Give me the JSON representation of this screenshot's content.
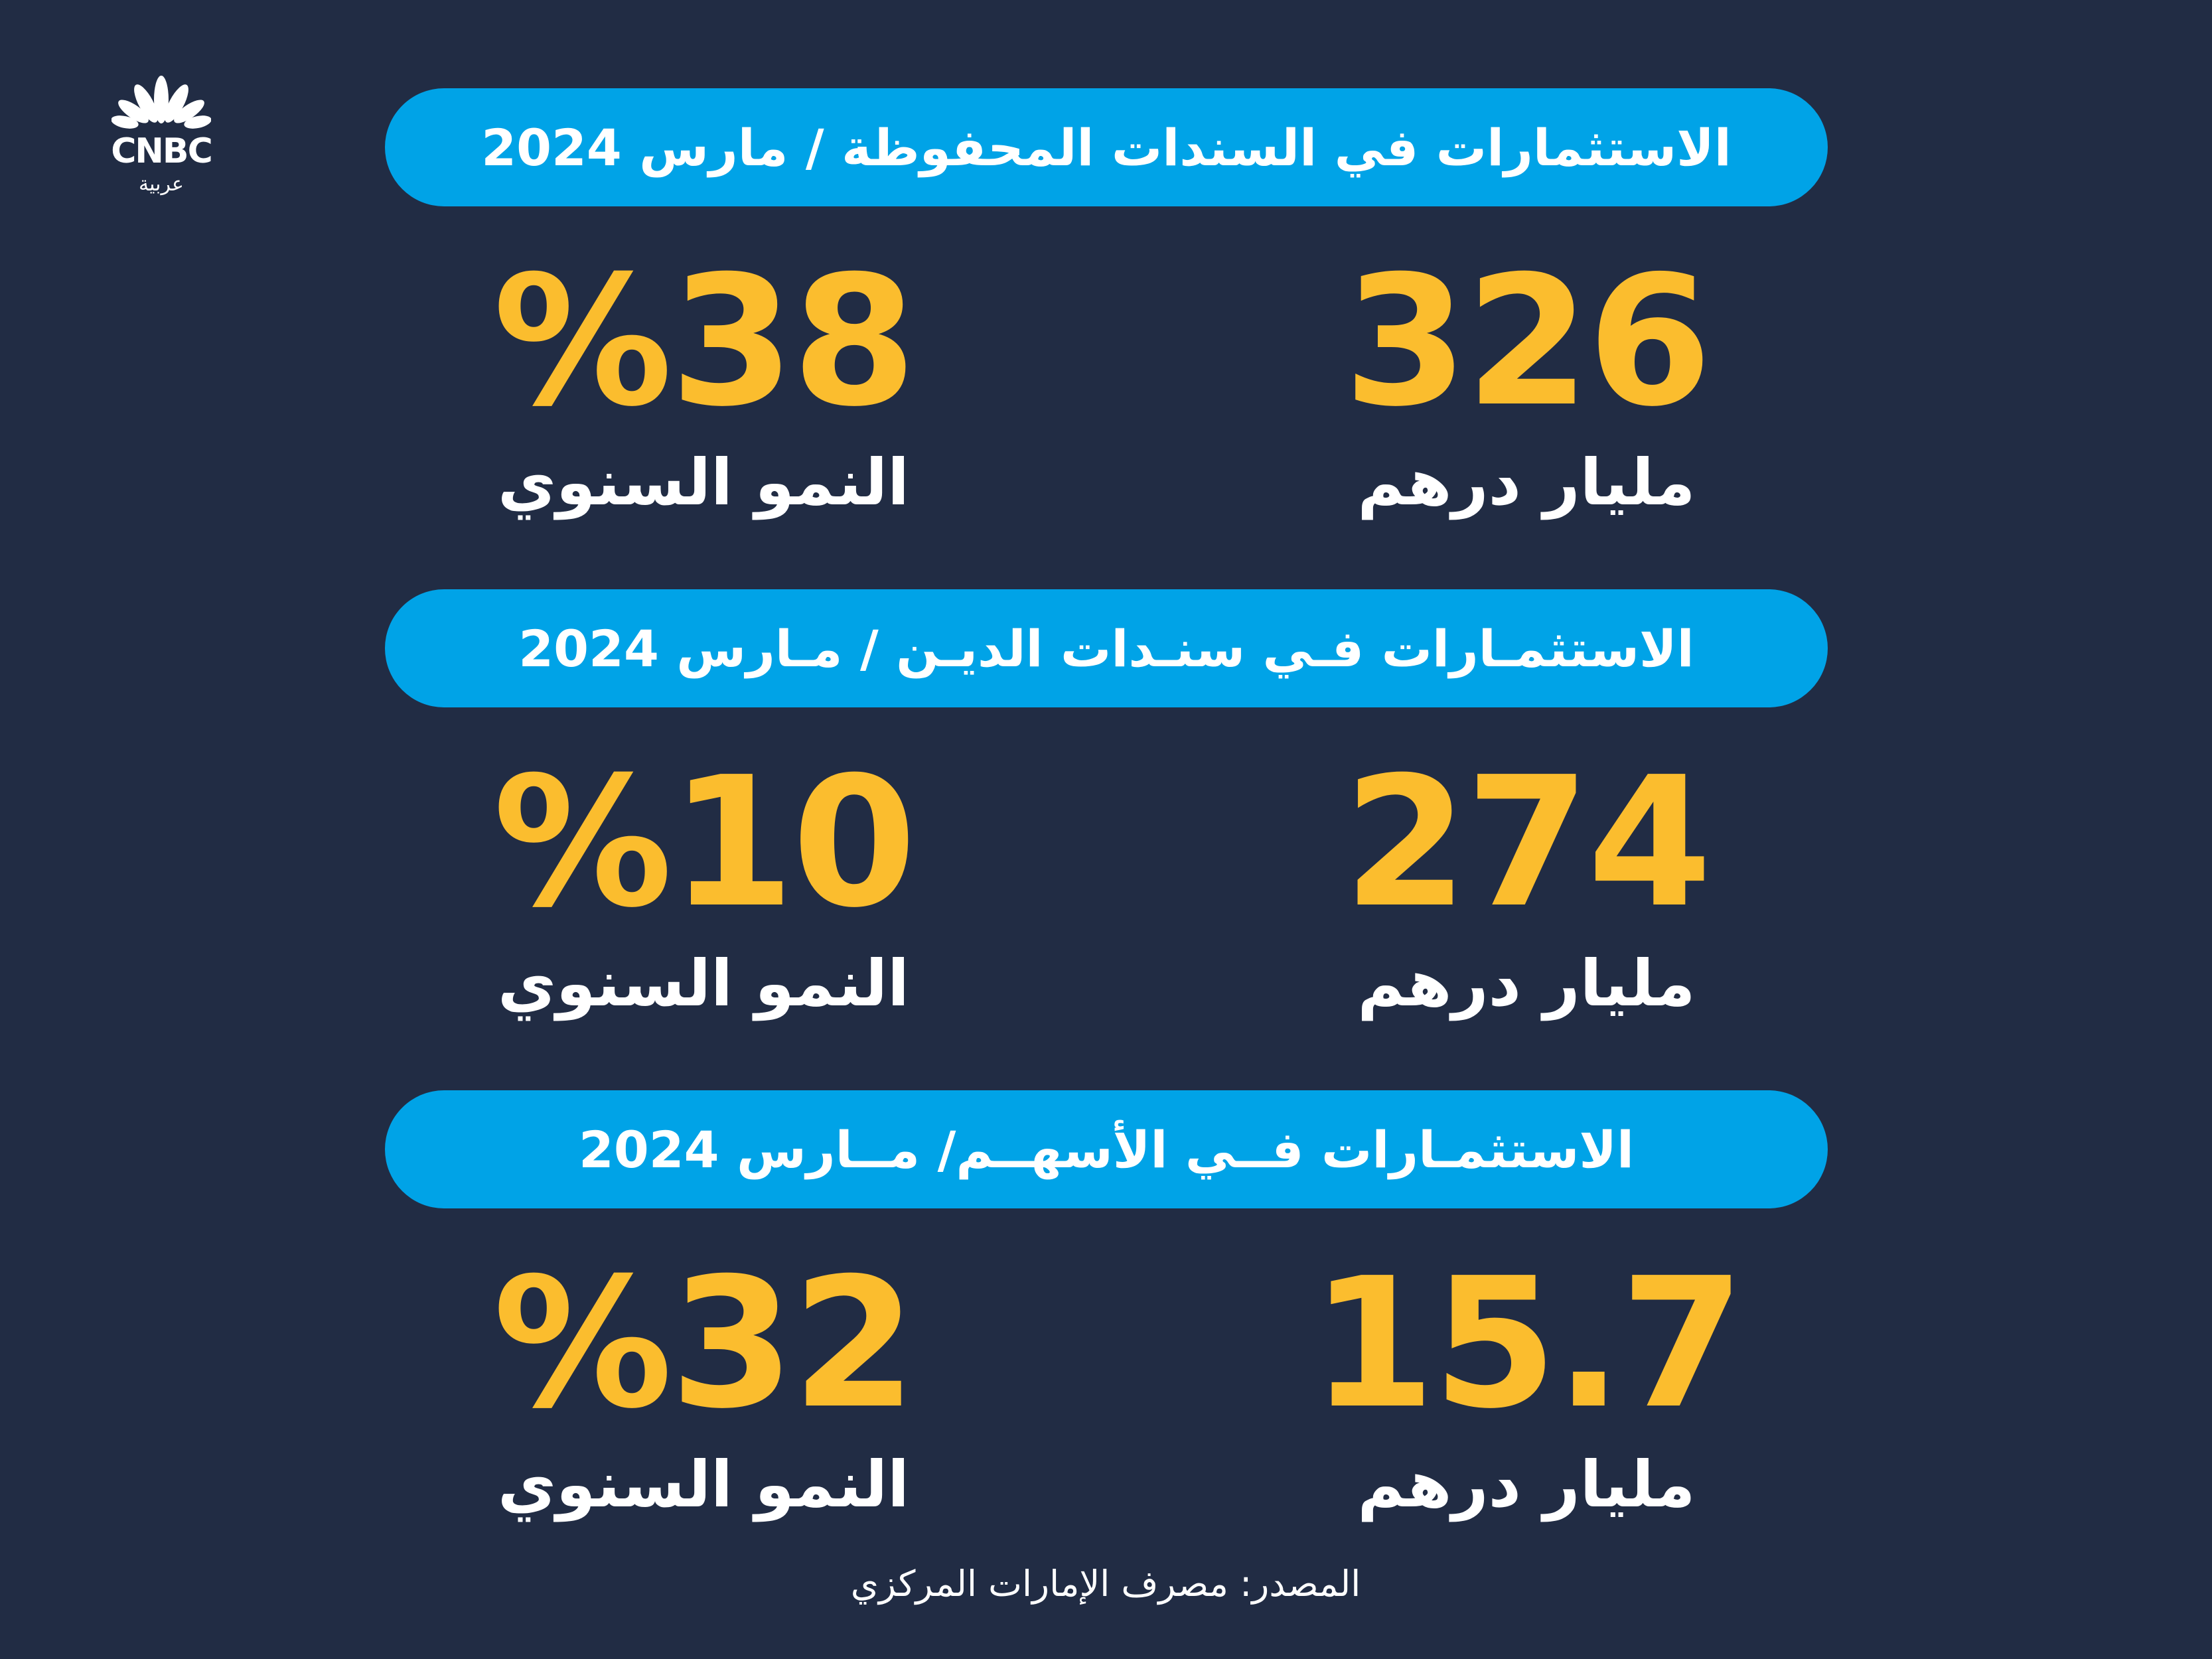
{
  "logo": {
    "brand": "CNBC",
    "sub": "عربية",
    "icon": "peacock-icon",
    "colors": {
      "mark": "#ffffff"
    }
  },
  "colors": {
    "background": "#212c44",
    "bar": "#00a3e7",
    "value": "#fbbd2e",
    "text": "#ffffff"
  },
  "sections": [
    {
      "title": "الاستثمارات في السندات المحفوظة / مارس 2024",
      "amount": {
        "value": "326",
        "label": "مليار درهم"
      },
      "growth": {
        "value": "%38",
        "label": "النمو السنوي"
      }
    },
    {
      "title": "الاستثمـارات فـي سنـدات الديـن / مـارس 2024",
      "amount": {
        "value": "274",
        "label": "مليار درهم"
      },
      "growth": {
        "value": "%10",
        "label": "النمو السنوي"
      }
    },
    {
      "title": "الاستثمـارات فــي الأسهــم/ مــارس 2024",
      "amount": {
        "value": "15.7",
        "label": "مليار درهم"
      },
      "growth": {
        "value": "%32",
        "label": "النمو السنوي"
      }
    }
  ],
  "source": "المصدر: مصرف الإمارات المركزي"
}
